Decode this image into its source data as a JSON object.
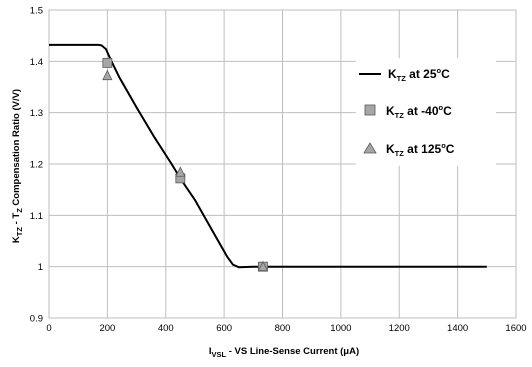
{
  "chart_data": {
    "type": "line",
    "x_axis": {
      "label_prefix": "I",
      "label_sub": "VSL",
      "label_suffix": " - VS Line-Sense Current (μA)",
      "min": 0,
      "max": 1600,
      "ticks": [
        0,
        200,
        400,
        600,
        800,
        1000,
        1200,
        1400,
        1600
      ],
      "grid": true
    },
    "y_axis": {
      "label_p1": "K",
      "label_s1": "TZ",
      "label_p2": " - T",
      "label_s2": "Z",
      "label_p3": " Compensation Ratio (V/V)",
      "min": 0.9,
      "max": 1.5,
      "ticks": [
        "0.9",
        "1",
        "1.1",
        "1.2",
        "1.3",
        "1.4",
        "1.5"
      ],
      "grid": true
    },
    "legend_position": "right",
    "series": [
      {
        "name_main": "K",
        "name_sub": "TZ",
        "name_mid": " at 25",
        "name_sup": "o",
        "name_end": "C",
        "kind": "line",
        "color": "#000000",
        "points": [
          [
            0,
            1.432
          ],
          [
            170,
            1.432
          ],
          [
            180,
            1.431
          ],
          [
            195,
            1.424
          ],
          [
            210,
            1.405
          ],
          [
            240,
            1.37
          ],
          [
            300,
            1.31
          ],
          [
            360,
            1.253
          ],
          [
            420,
            1.2
          ],
          [
            450,
            1.172
          ],
          [
            500,
            1.13
          ],
          [
            560,
            1.07
          ],
          [
            610,
            1.02
          ],
          [
            630,
            1.004
          ],
          [
            650,
            0.999
          ],
          [
            700,
            1.0
          ],
          [
            1500,
            1.0
          ]
        ]
      },
      {
        "name_main": "K",
        "name_sub": "TZ",
        "name_mid": " at -40",
        "name_sup": "o",
        "name_end": "C",
        "kind": "square",
        "color": "#a6a6a6",
        "points": [
          [
            200,
            1.397
          ],
          [
            450,
            1.172
          ],
          [
            733,
            1.0
          ]
        ]
      },
      {
        "name_main": "K",
        "name_sub": "TZ",
        "name_mid": " at 125",
        "name_sup": "o",
        "name_end": "C",
        "kind": "triangle",
        "color": "#a6a6a6",
        "points": [
          [
            200,
            1.372
          ],
          [
            450,
            1.184
          ],
          [
            733,
            1.0
          ]
        ]
      }
    ]
  }
}
